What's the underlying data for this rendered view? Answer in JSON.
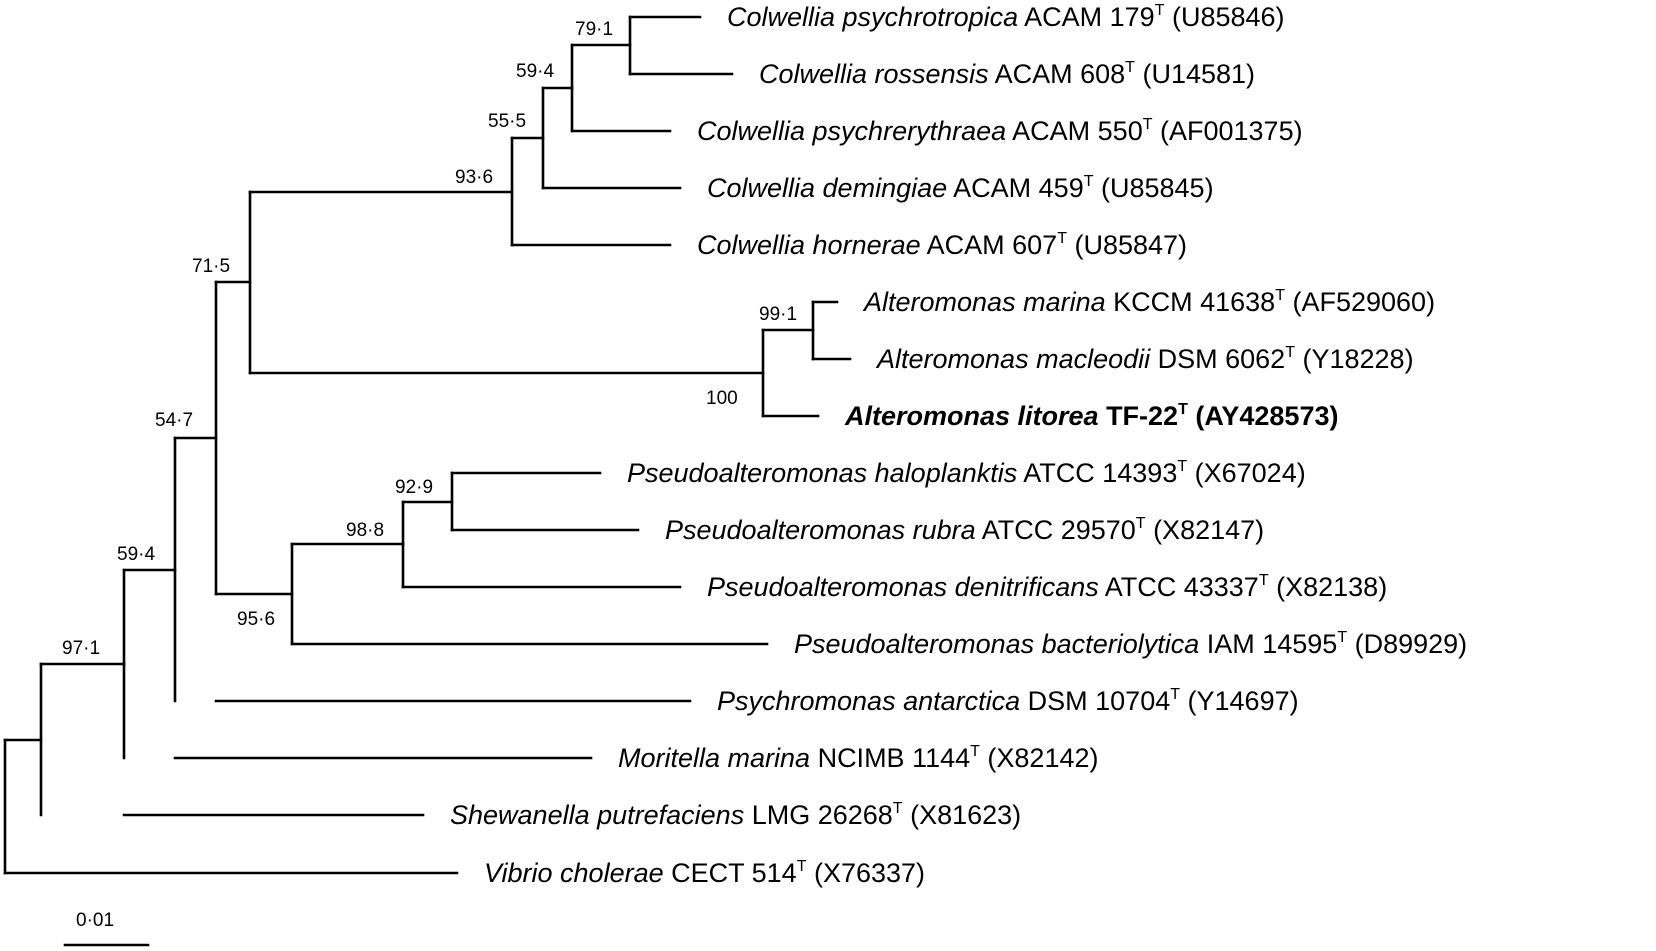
{
  "tree": {
    "taxa": [
      {
        "id": "t1",
        "genus_species": "Colwellia psychrotropica",
        "strain": "ACAM 179",
        "type_mark": "T",
        "accession": "(U85846)",
        "bold": false
      },
      {
        "id": "t2",
        "genus_species": "Colwellia rossensis",
        "strain": "ACAM 608",
        "type_mark": "T",
        "accession": "(U14581)",
        "bold": false
      },
      {
        "id": "t3",
        "genus_species": "Colwellia psychrerythraea",
        "strain": "ACAM 550",
        "type_mark": "T",
        "accession": "(AF001375)",
        "bold": false
      },
      {
        "id": "t4",
        "genus_species": "Colwellia demingiae",
        "strain": "ACAM 459",
        "type_mark": "T",
        "accession": "(U85845)",
        "bold": false
      },
      {
        "id": "t5",
        "genus_species": "Colwellia hornerae",
        "strain": "ACAM 607",
        "type_mark": "T",
        "accession": "(U85847)",
        "bold": false
      },
      {
        "id": "t6",
        "genus_species": "Alteromonas marina",
        "strain": "KCCM 41638",
        "type_mark": "T",
        "accession": "(AF529060)",
        "bold": false
      },
      {
        "id": "t7",
        "genus_species": "Alteromonas macleodii",
        "strain": "DSM 6062",
        "type_mark": "T",
        "accession": "(Y18228)",
        "bold": false
      },
      {
        "id": "t8",
        "genus_species": "Alteromonas litorea",
        "strain": "TF-22",
        "type_mark": "T",
        "accession": "(AY428573)",
        "bold": true
      },
      {
        "id": "t9",
        "genus_species": "Pseudoalteromonas haloplanktis",
        "strain": "ATCC 14393",
        "type_mark": "T",
        "accession": "(X67024)",
        "bold": false
      },
      {
        "id": "t10",
        "genus_species": "Pseudoalteromonas rubra",
        "strain": "ATCC 29570",
        "type_mark": "T",
        "accession": "(X82147)",
        "bold": false
      },
      {
        "id": "t11",
        "genus_species": "Pseudoalteromonas denitrificans",
        "strain": "ATCC 43337",
        "type_mark": "T",
        "accession": "(X82138)",
        "bold": false
      },
      {
        "id": "t12",
        "genus_species": "Pseudoalteromonas bacteriolytica",
        "strain": "IAM 14595",
        "type_mark": "T",
        "accession": "(D89929)",
        "bold": false
      },
      {
        "id": "t13",
        "genus_species": "Psychromonas antarctica",
        "strain": "DSM 10704",
        "type_mark": "T",
        "accession": "(Y14697)",
        "bold": false
      },
      {
        "id": "t14",
        "genus_species": "Moritella marina",
        "strain": "NCIMB 1144",
        "type_mark": "T",
        "accession": "(X82142)",
        "bold": false
      },
      {
        "id": "t15",
        "genus_species": "Shewanella putrefaciens",
        "strain": "LMG 26268",
        "type_mark": "T",
        "accession": "(X81623)",
        "bold": false
      },
      {
        "id": "t16",
        "genus_species": "Vibrio cholerae",
        "strain": "CECT 514",
        "type_mark": "T",
        "accession": "(X76337)",
        "bold": false
      }
    ],
    "bootstrap": [
      {
        "node": "n_psychro_ross",
        "value": "79·1"
      },
      {
        "node": "n_colw_a",
        "value": "59·4"
      },
      {
        "node": "n_colw_b",
        "value": "55·5"
      },
      {
        "node": "n_colw",
        "value": "93·6"
      },
      {
        "node": "n_colw_alt",
        "value": "71·5"
      },
      {
        "node": "n_alt_pair",
        "value": "99·1"
      },
      {
        "node": "n_alt",
        "value": "100"
      },
      {
        "node": "n_pseudo_pair",
        "value": "92·9"
      },
      {
        "node": "n_pseudo_b",
        "value": "98·8"
      },
      {
        "node": "n_pseudo",
        "value": "95·6"
      },
      {
        "node": "n_big",
        "value": "54·7"
      },
      {
        "node": "n_plus_psychro",
        "value": "59·4"
      },
      {
        "node": "n_plus_moritella",
        "value": "97·1"
      }
    ],
    "scale_bar": {
      "label": "0·01"
    }
  }
}
